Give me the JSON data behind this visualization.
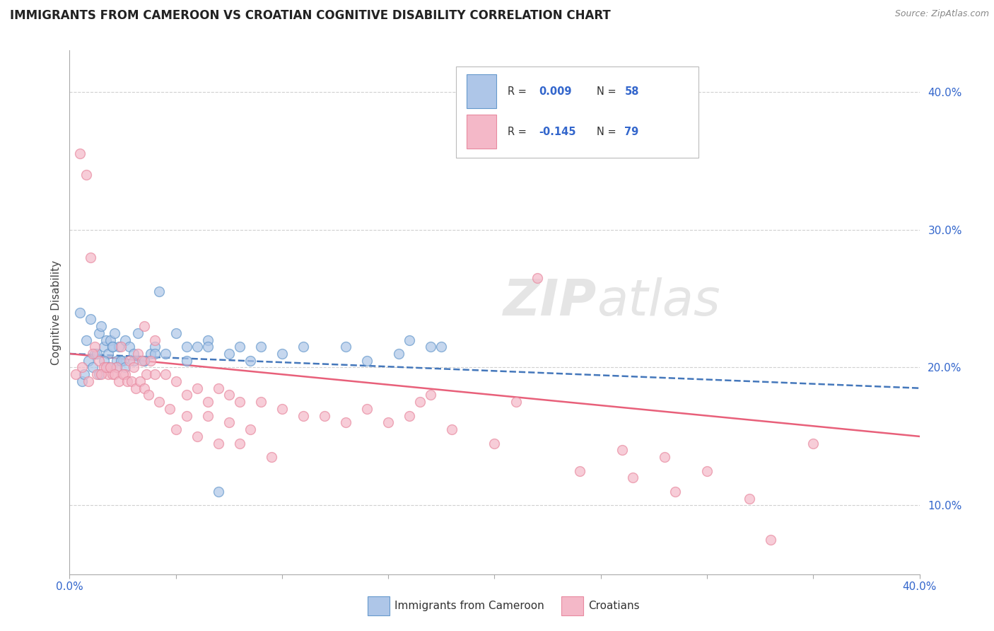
{
  "title": "IMMIGRANTS FROM CAMEROON VS CROATIAN COGNITIVE DISABILITY CORRELATION CHART",
  "source": "Source: ZipAtlas.com",
  "ylabel": "Cognitive Disability",
  "legend_blue_r": "0.009",
  "legend_blue_n": "58",
  "legend_pink_r": "-0.145",
  "legend_pink_n": "79",
  "legend_label_blue": "Immigrants from Cameroon",
  "legend_label_pink": "Croatians",
  "blue_color": "#aec6e8",
  "pink_color": "#f4b8c8",
  "blue_edge_color": "#6699cc",
  "pink_edge_color": "#e88aa0",
  "blue_line_color": "#4477bb",
  "pink_line_color": "#e8607a",
  "r_value_color": "#3366cc",
  "background_color": "#ffffff",
  "grid_color": "#d0d0d0",
  "title_color": "#222222",
  "watermark_color": "#cccccc",
  "blue_scatter_x": [
    0.5,
    0.8,
    1.0,
    1.2,
    1.4,
    1.5,
    1.6,
    1.7,
    1.8,
    1.9,
    2.0,
    2.1,
    2.2,
    2.3,
    2.5,
    2.6,
    2.8,
    3.0,
    3.2,
    3.5,
    3.8,
    4.0,
    4.2,
    5.0,
    5.5,
    6.0,
    6.5,
    7.5,
    8.0,
    9.0,
    10.0,
    11.0,
    13.0,
    14.0,
    15.5,
    16.0,
    17.0,
    17.5,
    0.6,
    0.7,
    0.9,
    1.1,
    1.3,
    1.4,
    1.6,
    1.8,
    2.0,
    2.2,
    2.4,
    2.6,
    3.0,
    3.5,
    4.0,
    4.5,
    5.5,
    6.5,
    7.0,
    8.5
  ],
  "blue_scatter_y": [
    24.0,
    22.0,
    23.5,
    21.0,
    22.5,
    23.0,
    21.5,
    22.0,
    21.0,
    22.0,
    21.5,
    22.5,
    20.5,
    21.5,
    20.5,
    22.0,
    21.5,
    21.0,
    22.5,
    20.5,
    21.0,
    21.5,
    25.5,
    22.5,
    21.5,
    21.5,
    22.0,
    21.0,
    21.5,
    21.5,
    21.0,
    21.5,
    21.5,
    20.5,
    21.0,
    22.0,
    21.5,
    21.5,
    19.0,
    19.5,
    20.5,
    20.0,
    21.0,
    19.5,
    20.5,
    20.0,
    21.5,
    20.0,
    20.5,
    20.0,
    20.5,
    20.5,
    21.0,
    21.0,
    20.5,
    21.5,
    11.0,
    20.5
  ],
  "pink_scatter_x": [
    0.5,
    0.8,
    1.0,
    1.2,
    1.4,
    1.6,
    1.8,
    2.0,
    2.2,
    2.4,
    2.6,
    2.8,
    3.0,
    3.2,
    3.4,
    3.6,
    3.8,
    4.0,
    4.5,
    5.0,
    5.5,
    6.0,
    6.5,
    7.0,
    7.5,
    8.0,
    9.0,
    10.0,
    11.0,
    12.0,
    13.0,
    14.0,
    15.0,
    16.0,
    18.0,
    20.0,
    22.0,
    24.0,
    26.0,
    28.0,
    30.0,
    33.0,
    35.0,
    0.3,
    0.6,
    0.9,
    1.1,
    1.3,
    1.5,
    1.7,
    1.9,
    2.1,
    2.3,
    2.5,
    2.7,
    2.9,
    3.1,
    3.3,
    3.5,
    3.7,
    4.2,
    4.7,
    5.5,
    6.5,
    7.5,
    8.5,
    3.5,
    4.0,
    5.0,
    6.0,
    7.0,
    8.0,
    9.5,
    16.5,
    17.0,
    21.0,
    26.5,
    28.5,
    32.0
  ],
  "pink_scatter_y": [
    35.5,
    34.0,
    28.0,
    21.5,
    20.5,
    20.0,
    19.5,
    19.5,
    20.0,
    21.5,
    19.5,
    20.5,
    20.0,
    21.0,
    20.5,
    19.5,
    20.5,
    19.5,
    19.5,
    19.0,
    18.0,
    18.5,
    17.5,
    18.5,
    18.0,
    17.5,
    17.5,
    17.0,
    16.5,
    16.5,
    16.0,
    17.0,
    16.0,
    16.5,
    15.5,
    14.5,
    26.5,
    12.5,
    14.0,
    13.5,
    12.5,
    7.5,
    14.5,
    19.5,
    20.0,
    19.0,
    21.0,
    19.5,
    19.5,
    20.0,
    20.0,
    19.5,
    19.0,
    19.5,
    19.0,
    19.0,
    18.5,
    19.0,
    18.5,
    18.0,
    17.5,
    17.0,
    16.5,
    16.5,
    16.0,
    15.5,
    23.0,
    22.0,
    15.5,
    15.0,
    14.5,
    14.5,
    13.5,
    17.5,
    18.0,
    17.5,
    12.0,
    11.0,
    10.5
  ],
  "blue_trendline_x": [
    0.0,
    40.0
  ],
  "blue_trendline_y": [
    21.0,
    18.5
  ],
  "pink_trendline_x": [
    0.0,
    40.0
  ],
  "pink_trendline_y": [
    21.0,
    15.0
  ],
  "xlim": [
    0.0,
    40.0
  ],
  "ylim": [
    5.0,
    43.0
  ],
  "xpct_ticks": [
    0.0,
    5.0,
    10.0,
    15.0,
    20.0,
    25.0,
    30.0,
    35.0,
    40.0
  ],
  "ypct_ticks": [
    10.0,
    20.0,
    30.0,
    40.0
  ]
}
